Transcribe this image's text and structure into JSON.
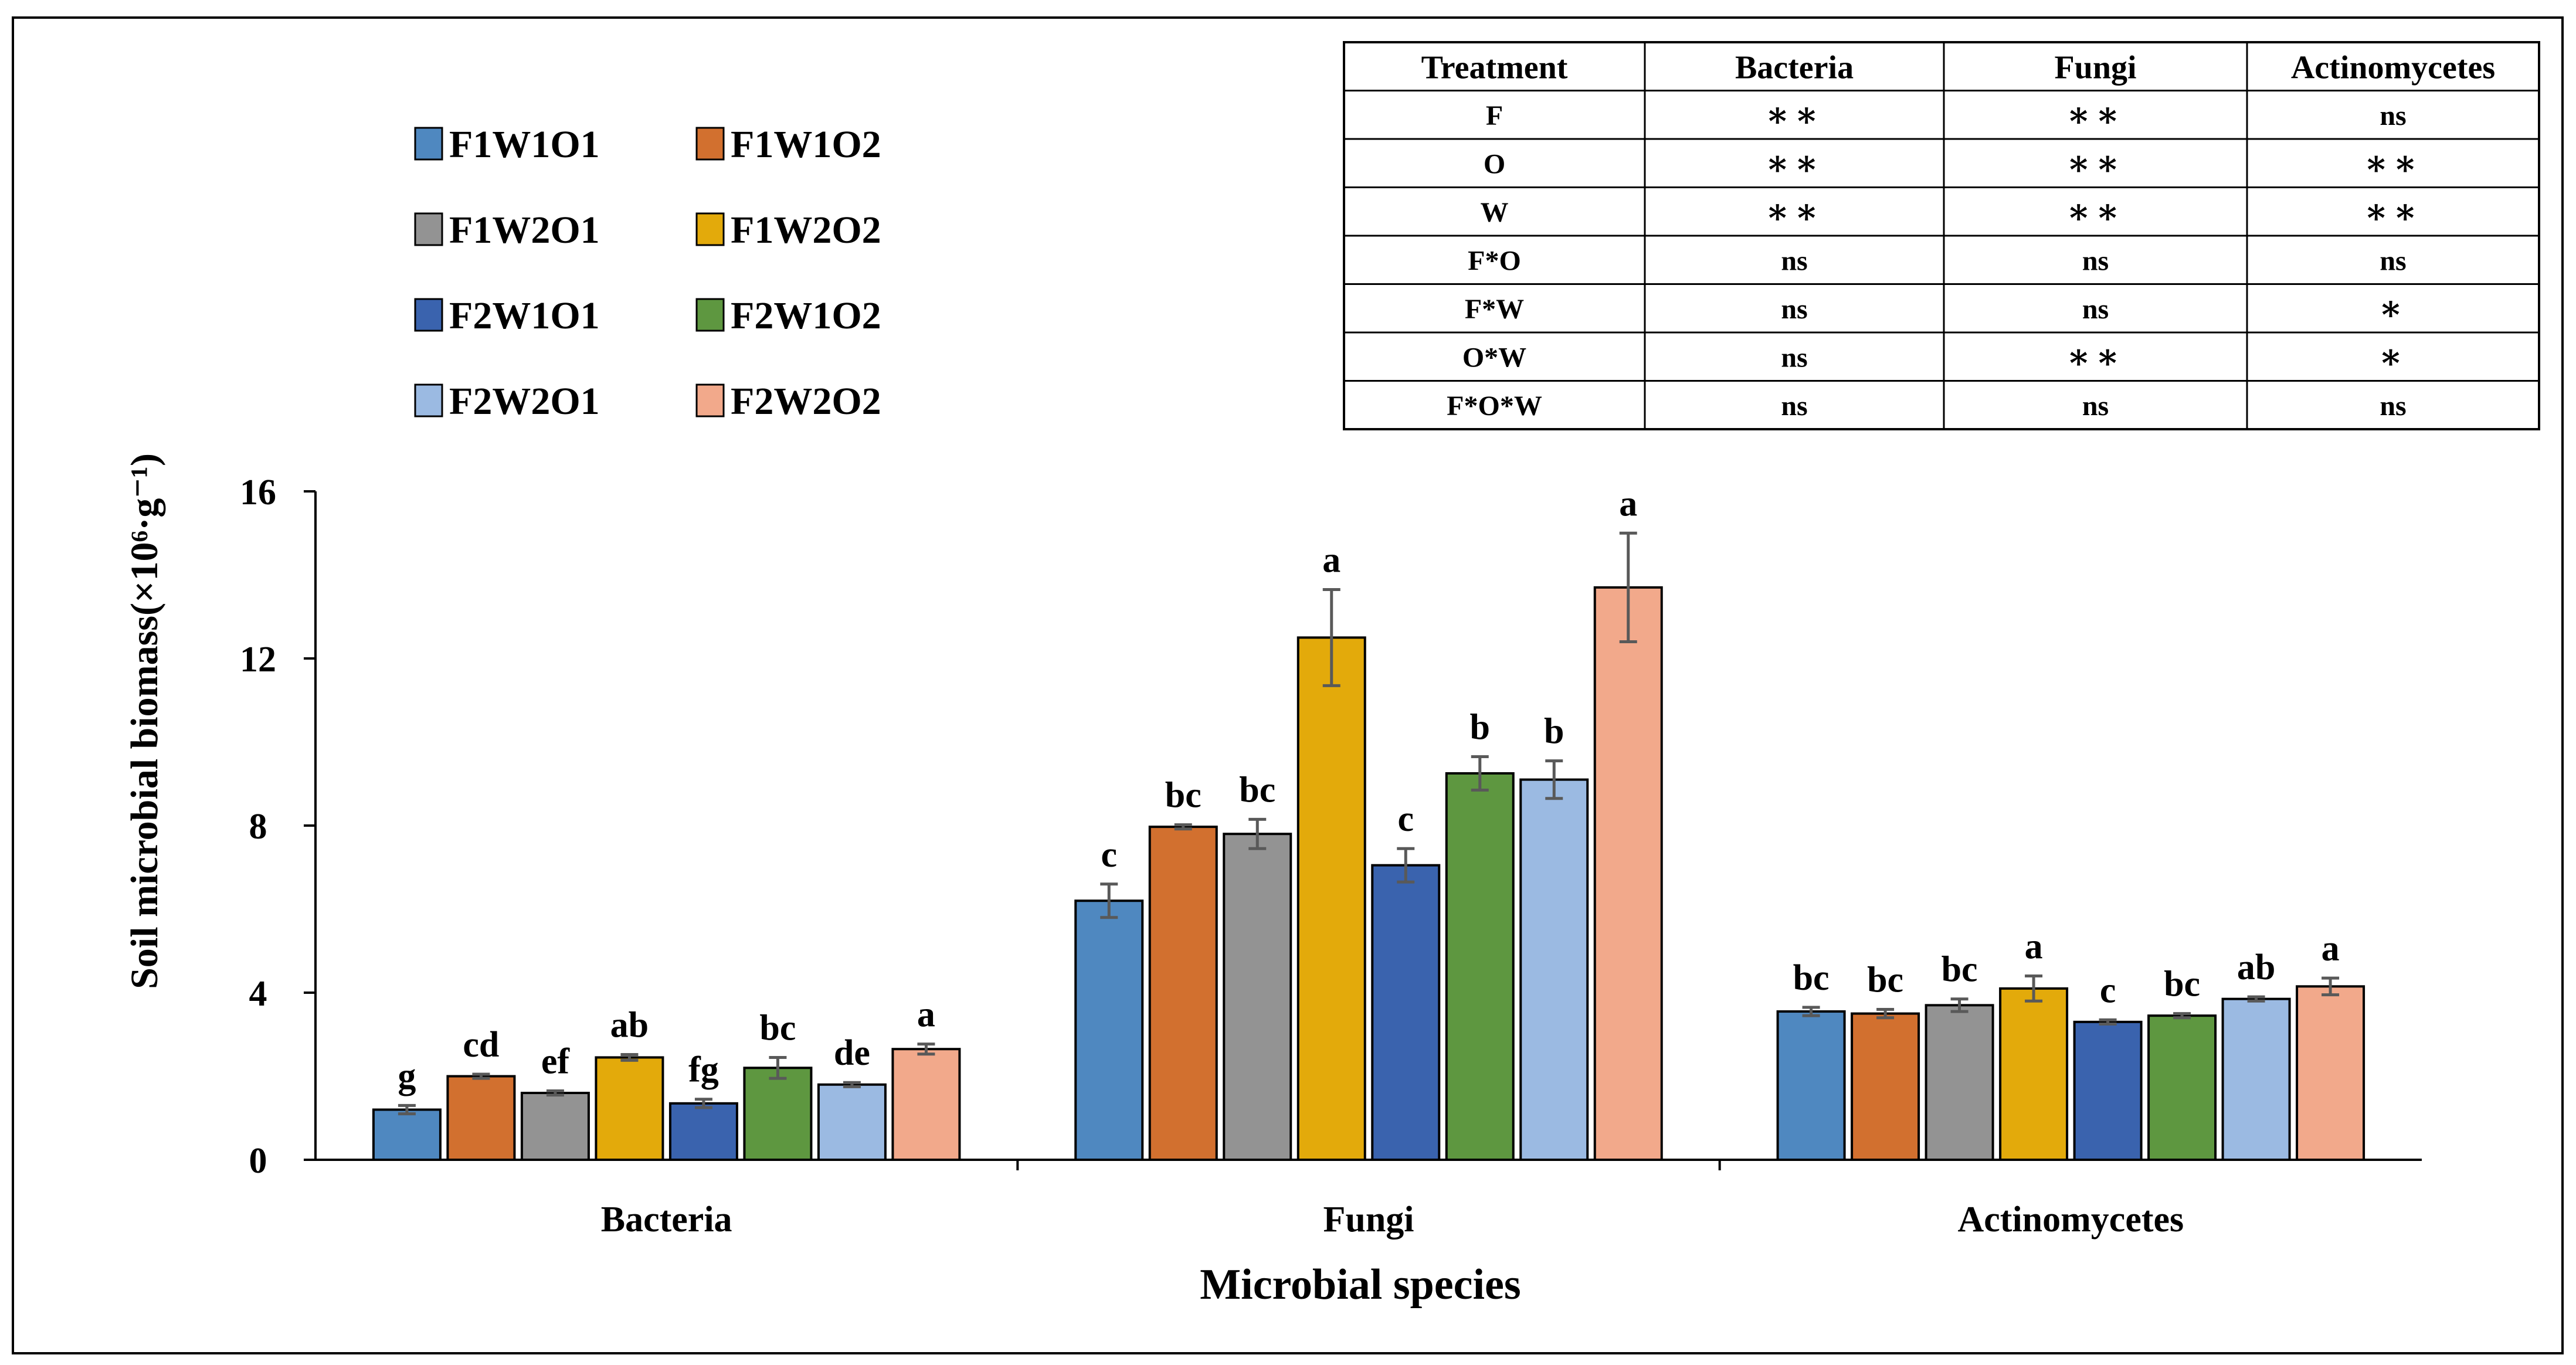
{
  "chart_data": {
    "type": "bar",
    "xlabel": "Microbial species",
    "ylabel": "Soil microbial biomass(×10⁶·g⁻¹)",
    "ylim": [
      0,
      16
    ],
    "yticks": [
      0,
      4,
      8,
      12,
      16
    ],
    "ytick_labels": [
      "0",
      "4",
      "8",
      "12",
      "16"
    ],
    "grid": false,
    "legend_position": "top-left",
    "categories": [
      "Bacteria",
      "Fungi",
      "Actinomycetes"
    ],
    "series": [
      {
        "name": "F1W1O1",
        "color": "#4F88C0",
        "values": [
          1.2,
          6.2,
          3.55
        ],
        "errors": [
          0.1,
          0.4,
          0.1
        ],
        "letters": [
          "g",
          "c",
          "bc"
        ]
      },
      {
        "name": "F1W1O2",
        "color": "#D2702F",
        "values": [
          2.0,
          7.97,
          3.5
        ],
        "errors": [
          0.05,
          0.05,
          0.1
        ],
        "letters": [
          "cd",
          "bc",
          "bc"
        ]
      },
      {
        "name": "F1W2O1",
        "color": "#939393",
        "values": [
          1.6,
          7.8,
          3.7
        ],
        "errors": [
          0.05,
          0.35,
          0.15
        ],
        "letters": [
          "ef",
          "bc",
          "bc"
        ]
      },
      {
        "name": "F1W2O2",
        "color": "#E3AA0B",
        "values": [
          2.45,
          12.5,
          4.1
        ],
        "errors": [
          0.07,
          1.15,
          0.3
        ],
        "letters": [
          "ab",
          "a",
          "a"
        ]
      },
      {
        "name": "F2W1O1",
        "color": "#3A63AE",
        "values": [
          1.35,
          7.05,
          3.3
        ],
        "errors": [
          0.1,
          0.4,
          0.05
        ],
        "letters": [
          "fg",
          "c",
          "c"
        ]
      },
      {
        "name": "F2W1O2",
        "color": "#5E9740",
        "values": [
          2.2,
          9.25,
          3.45
        ],
        "errors": [
          0.25,
          0.4,
          0.05
        ],
        "letters": [
          "bc",
          "b",
          "bc"
        ]
      },
      {
        "name": "F2W2O1",
        "color": "#9BBAE2",
        "values": [
          1.8,
          9.1,
          3.85
        ],
        "errors": [
          0.05,
          0.45,
          0.05
        ],
        "letters": [
          "de",
          "b",
          "ab"
        ]
      },
      {
        "name": "F2W2O2",
        "color": "#F2A98B",
        "values": [
          2.65,
          13.7,
          4.15
        ],
        "errors": [
          0.12,
          1.3,
          0.2
        ],
        "letters": [
          "a",
          "a",
          "a"
        ]
      }
    ]
  },
  "significance_table": {
    "headers": [
      "Treatment",
      "Bacteria",
      "Fungi",
      "Actinomycetes"
    ],
    "rows": [
      [
        "F",
        "∗∗",
        "∗∗",
        "ns"
      ],
      [
        "O",
        "∗∗",
        "∗∗",
        "∗∗"
      ],
      [
        "W",
        "∗∗",
        "∗∗",
        "∗∗"
      ],
      [
        "F*O",
        "ns",
        "ns",
        "ns"
      ],
      [
        "F*W",
        "ns",
        "ns",
        "∗"
      ],
      [
        "O*W",
        "ns",
        "∗∗",
        "∗"
      ],
      [
        "F*O*W",
        "ns",
        "ns",
        "ns"
      ]
    ]
  }
}
